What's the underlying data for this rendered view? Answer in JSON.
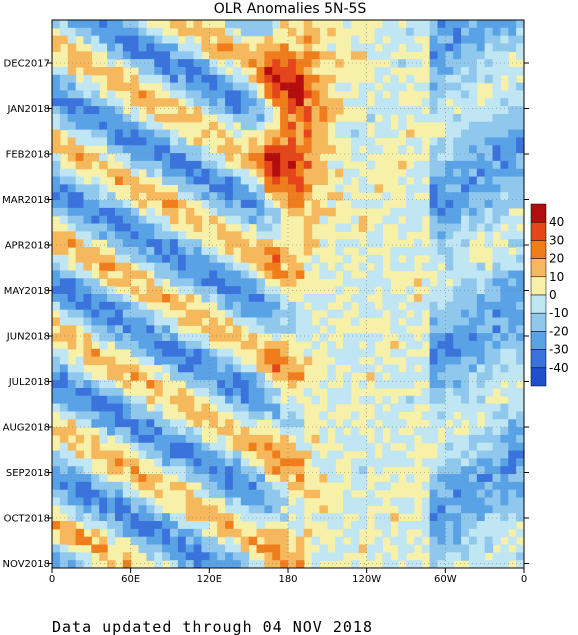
{
  "chart_data": {
    "type": "heatmap",
    "title": "OLR Anomalies 5N-5S",
    "x_ticks": [
      "0",
      "60E",
      "120E",
      "180",
      "120W",
      "60W",
      "0"
    ],
    "y_ticks": [
      "DEC2017",
      "JAN2018",
      "FEB2018",
      "MAR2018",
      "APR2018",
      "MAY2018",
      "JUN2018",
      "JUL2018",
      "AUG2018",
      "SEP2018",
      "OCT2018",
      "NOV2018"
    ],
    "xlim": [
      "0",
      "0"
    ],
    "ylim": [
      "NOV2017",
      "04 NOV 2018"
    ],
    "grid": true,
    "colorbar": {
      "labels": [
        "40",
        "30",
        "20",
        "10",
        "0",
        "-10",
        "-20",
        "-30",
        "-40"
      ],
      "colors": [
        "#b30d0d",
        "#e6441a",
        "#f07d1c",
        "#f5b85c",
        "#f7f0a8",
        "#bfe6f2",
        "#8fc8ec",
        "#5aa2e6",
        "#3a73dc",
        "#1f4fc9"
      ]
    },
    "palette": {
      "background": "#f7f0a8"
    }
  },
  "footer": "Data updated through 04 NOV 2018"
}
